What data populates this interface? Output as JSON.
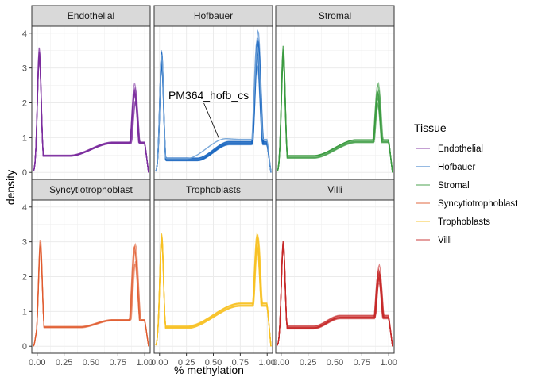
{
  "chart_data": {
    "type": "line",
    "subtype": "density-facets",
    "xlabel": "% methylation",
    "ylabel": "density",
    "x_ticks": [
      "0.00",
      "0.25",
      "0.50",
      "0.75",
      "1.00"
    ],
    "x_tick_values": [
      0,
      0.25,
      0.5,
      0.75,
      1.0
    ],
    "y_ticks": [
      "0",
      "1",
      "2",
      "3",
      "4"
    ],
    "y_tick_values": [
      0,
      1,
      2,
      3,
      4
    ],
    "xlim": [
      -0.05,
      1.05
    ],
    "ylim": [
      -0.2,
      4.2
    ],
    "grid": true,
    "legend": {
      "title": "Tissue",
      "placement": "right",
      "entries": [
        "Endothelial",
        "Hofbauer",
        "Stromal",
        "Syncytiotrophoblast",
        "Trophoblasts",
        "Villi"
      ]
    },
    "panels": [
      {
        "name": "Endothelial",
        "color": "#7B2D9E",
        "n_samples": 12,
        "left_peak": {
          "x": 0.02,
          "y": 3.55
        },
        "valley": {
          "x": 0.3,
          "y": 0.48
        },
        "shoulder": {
          "x": 0.7,
          "y": 0.85
        },
        "right_peak": {
          "x": 0.91,
          "y": 2.55
        }
      },
      {
        "name": "Hofbauer",
        "color": "#1565C0",
        "n_samples": 12,
        "left_peak": {
          "x": 0.02,
          "y": 3.4
        },
        "valley": {
          "x": 0.35,
          "y": 0.38
        },
        "shoulder": {
          "x": 0.65,
          "y": 0.85
        },
        "right_peak": {
          "x": 0.91,
          "y": 4.0
        }
      },
      {
        "name": "Stromal",
        "color": "#3A9A3F",
        "n_samples": 12,
        "left_peak": {
          "x": 0.02,
          "y": 3.55
        },
        "valley": {
          "x": 0.3,
          "y": 0.45
        },
        "shoulder": {
          "x": 0.7,
          "y": 0.9
        },
        "right_peak": {
          "x": 0.9,
          "y": 2.55
        }
      },
      {
        "name": "Syncytiotrophoblast",
        "color": "#E0592B",
        "n_samples": 6,
        "left_peak": {
          "x": 0.03,
          "y": 3.05
        },
        "valley": {
          "x": 0.4,
          "y": 0.55
        },
        "shoulder": {
          "x": 0.7,
          "y": 0.75
        },
        "right_peak": {
          "x": 0.91,
          "y": 3.05
        }
      },
      {
        "name": "Trophoblasts",
        "color": "#F7C123",
        "n_samples": 12,
        "left_peak": {
          "x": 0.02,
          "y": 3.3
        },
        "valley": {
          "x": 0.25,
          "y": 0.55
        },
        "shoulder": {
          "x": 0.75,
          "y": 1.2
        },
        "right_peak": {
          "x": 0.91,
          "y": 3.3
        }
      },
      {
        "name": "Villi",
        "color": "#C62828",
        "n_samples": 12,
        "left_peak": {
          "x": 0.02,
          "y": 3.05
        },
        "valley": {
          "x": 0.3,
          "y": 0.55
        },
        "shoulder": {
          "x": 0.55,
          "y": 0.85
        },
        "right_peak": {
          "x": 0.91,
          "y": 2.35
        }
      }
    ],
    "annotation": {
      "panel": "Hofbauer",
      "text": "PM364_hofb_cs",
      "target": {
        "x": 0.55,
        "y": 0.97
      },
      "outlier_curve": {
        "left_peak": {
          "x": 0.02,
          "y": 3.4
        },
        "valley": {
          "x": 0.25,
          "y": 0.4
        },
        "hump": {
          "x": 0.62,
          "y": 0.97
        },
        "dip": {
          "x": 0.73,
          "y": 0.95
        },
        "right_peak": {
          "x": 0.91,
          "y": 3.6
        }
      }
    }
  }
}
